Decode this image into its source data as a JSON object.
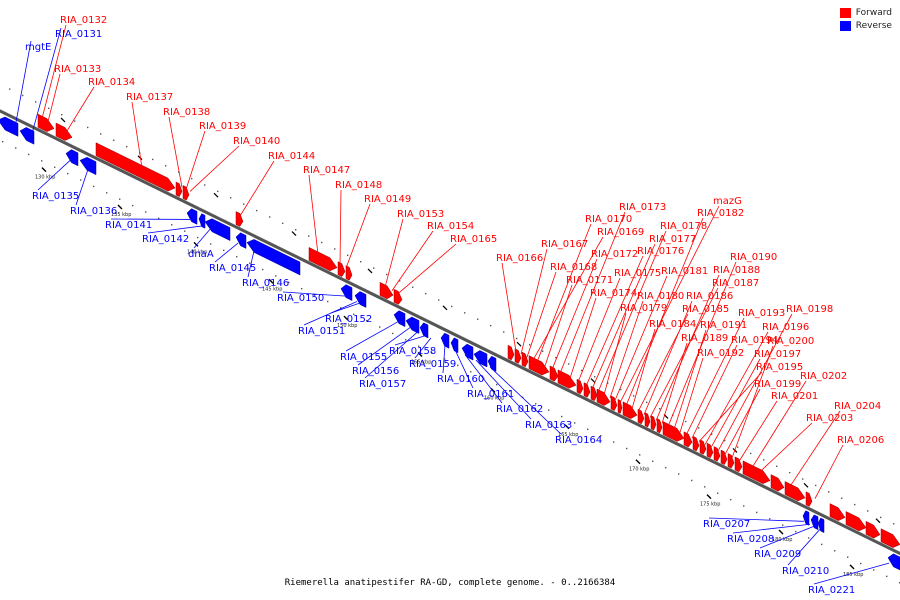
{
  "legend": {
    "forward_label": "Forward",
    "reverse_label": "Reverse",
    "forward_color": "#ff0000",
    "reverse_color": "#0000ff"
  },
  "caption": "Riemerella anatipestifer RA-GD, complete genome. - 0..2166384",
  "ticks": [
    "130 kbp",
    "135 kbp",
    "140 kbp",
    "145 kbp",
    "150 kbp",
    "155 kbp",
    "160 kbp",
    "165 kbp",
    "170 kbp",
    "175 kbp",
    "180 kbp",
    "185 kbp"
  ],
  "forward_labels": [
    "RIA_0132",
    "RIA_0133",
    "RIA_0134",
    "RIA_0137",
    "RIA_0138",
    "RIA_0139",
    "RIA_0140",
    "RIA_0144",
    "RIA_0147",
    "RIA_0148",
    "RIA_0149",
    "RIA_0153",
    "RIA_0154",
    "RIA_0165",
    "RIA_0166",
    "RIA_0167",
    "RIA_0168",
    "RIA_0169",
    "RIA_0170",
    "RIA_0171",
    "RIA_0172",
    "RIA_0173",
    "RIA_0174",
    "RIA_0175",
    "RIA_0176",
    "RIA_0177",
    "RIA_0178",
    "RIA_0179",
    "RIA_0180",
    "RIA_0181",
    "mazG",
    "RIA_0182",
    "RIA_0184",
    "RIA_0185",
    "RIA_0186",
    "RIA_0187",
    "RIA_0188",
    "RIA_0189",
    "RIA_0190",
    "RIA_0191",
    "RIA_0192",
    "RIA_0193",
    "RIA_0194",
    "RIA_0195",
    "RIA_0196",
    "RIA_0197",
    "RIA_0198",
    "RIA_0199",
    "RIA_0200",
    "RIA_0201",
    "RIA_0202",
    "RIA_0203",
    "RIA_0204",
    "RIA_0206"
  ],
  "reverse_labels": [
    "RIA_0131",
    "mgtE",
    "RIA_0135",
    "RIA_0136",
    "RIA_0141",
    "RIA_0142",
    "dnaA",
    "RIA_0145",
    "RIA_0146",
    "RIA_0150",
    "RIA_0151",
    "RIA_0152",
    "RIA_0155",
    "RIA_0156",
    "RIA_0157",
    "RIA_0158",
    "RIA_0159",
    "RIA_0160",
    "RIA_0161",
    "RIA_0162",
    "RIA_0163",
    "RIA_0164",
    "RIA_0207",
    "RIA_0208",
    "RIA_0209",
    "RIA_0210",
    "RIA_0221"
  ]
}
